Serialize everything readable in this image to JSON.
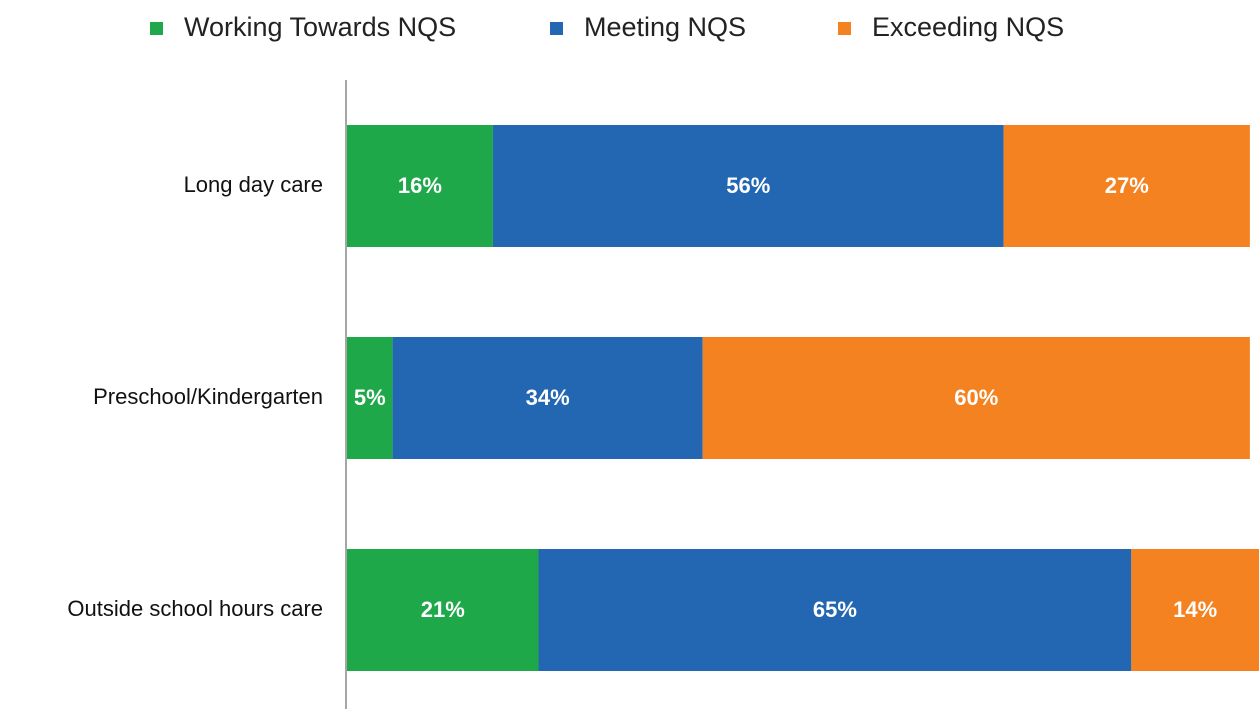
{
  "chart_data": {
    "type": "stacked-barh",
    "categories": [
      "Long day care",
      "Preschool/Kindergarten",
      "Outside school hours care"
    ],
    "series": [
      {
        "name": "Working Towards NQS",
        "color": "#1fa84a",
        "values": [
          16,
          5,
          21
        ],
        "value_labels": [
          "16%",
          "5%",
          "21%"
        ]
      },
      {
        "name": "Meeting NQS",
        "color": "#2366b1",
        "values": [
          56,
          34,
          65
        ],
        "value_labels": [
          "56%",
          "34%",
          "65%"
        ]
      },
      {
        "name": "Exceeding NQS",
        "color": "#f58220",
        "values": [
          27,
          60,
          14
        ],
        "value_labels": [
          "27%",
          "60%",
          "14%"
        ]
      }
    ],
    "xlim": [
      0,
      100
    ],
    "legend": "top"
  }
}
